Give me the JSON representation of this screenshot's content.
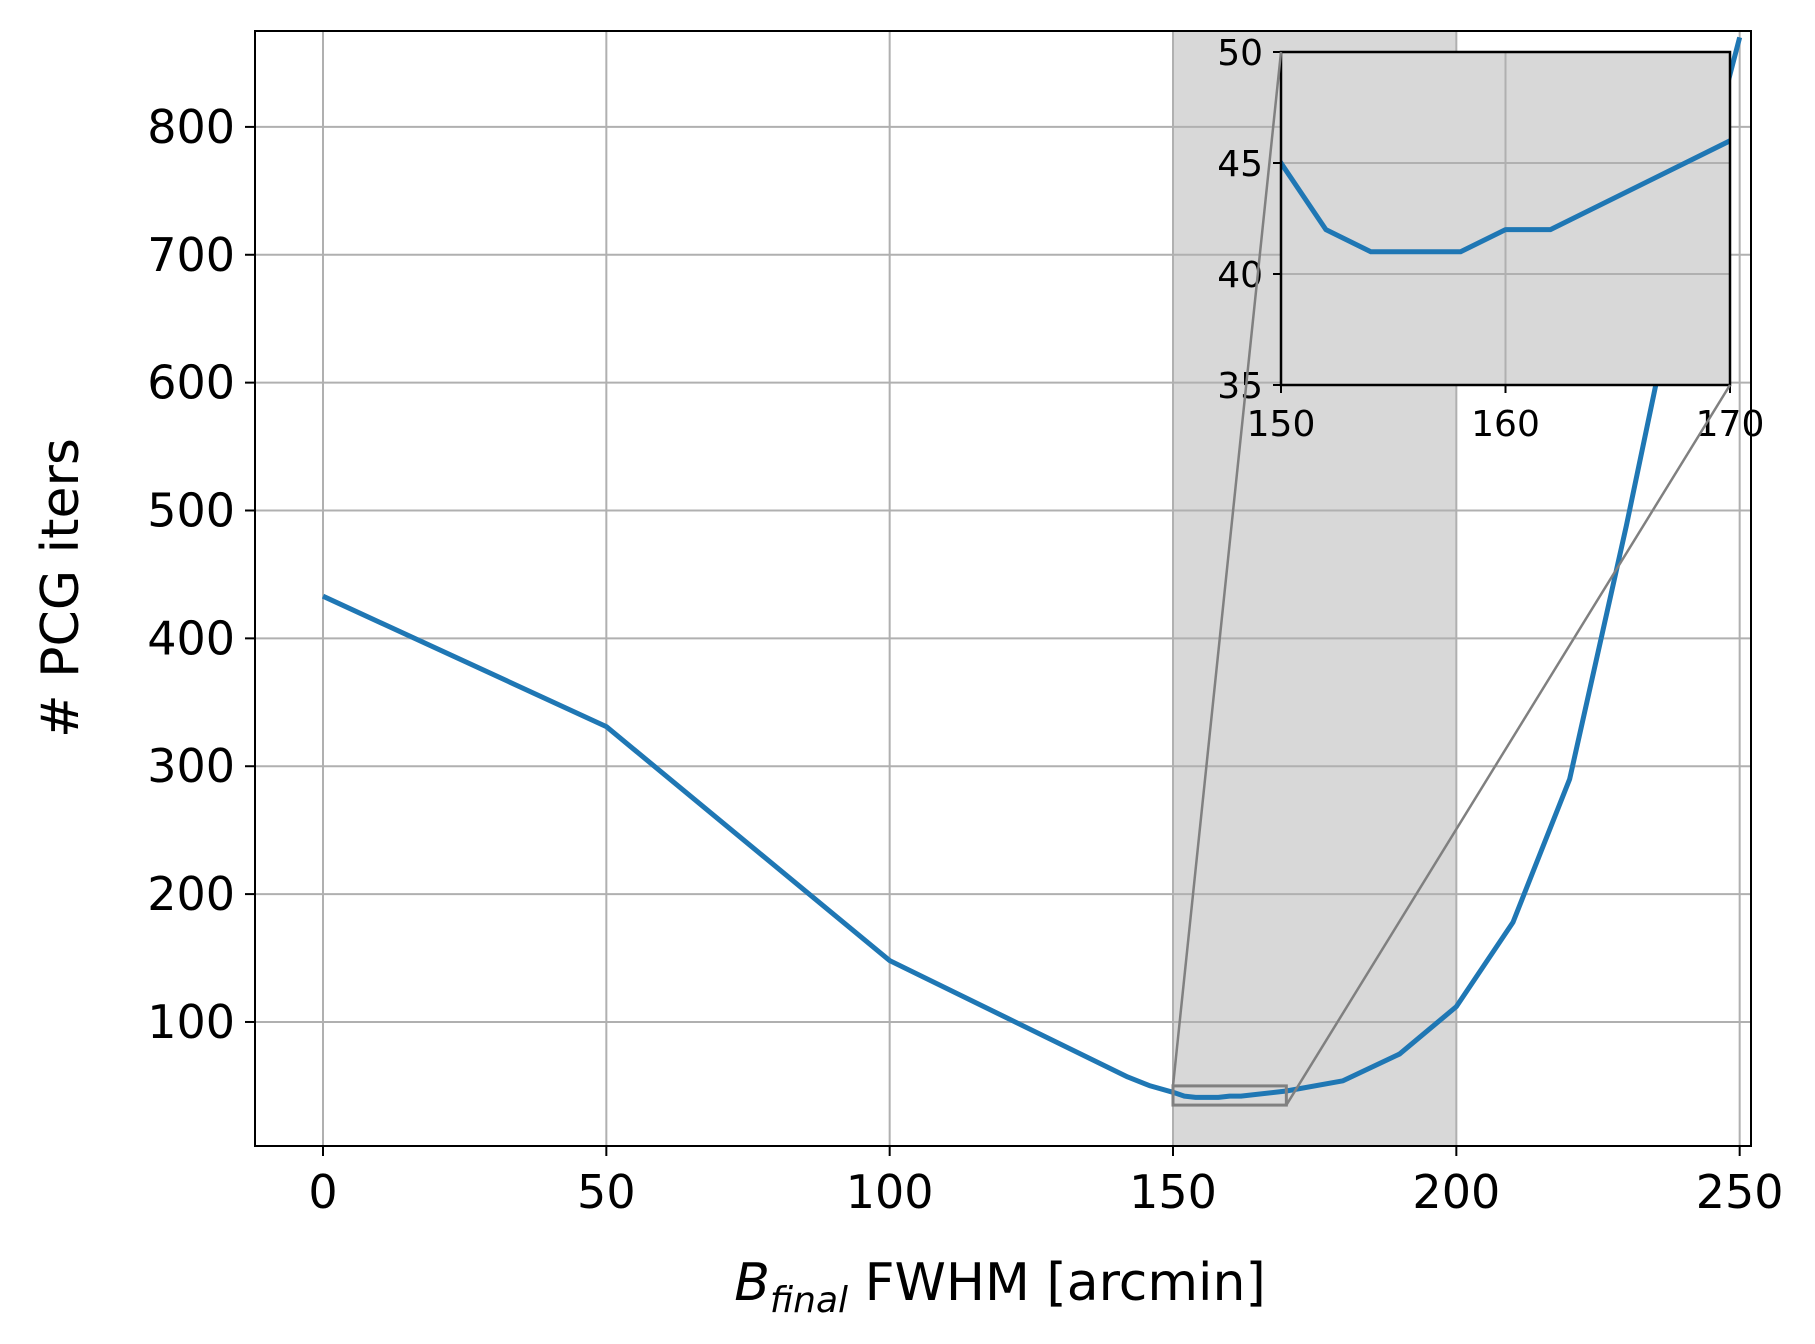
{
  "chart_data": {
    "type": "line",
    "xlabel": {
      "symbol": "B",
      "subscript": "final",
      "text": " FWHM [arcmin]"
    },
    "ylabel": "# PCG iters",
    "xlim": [
      -12,
      252
    ],
    "ylim": [
      3,
      875
    ],
    "xticks": [
      0,
      50,
      100,
      150,
      200,
      250
    ],
    "yticks": [
      100,
      200,
      300,
      400,
      500,
      600,
      700,
      800
    ],
    "grid": true,
    "highlight_band": {
      "x_start": 150,
      "x_end": 200,
      "color": "#d8d8d8"
    },
    "series": [
      {
        "color": "#1f77b4",
        "x": [
          0,
          50,
          100,
          142,
          146,
          150,
          152,
          154,
          156,
          158,
          160,
          162,
          170,
          180,
          190,
          200,
          210,
          220,
          230,
          240,
          250
        ],
        "y": [
          433,
          331,
          148,
          57,
          50,
          45,
          42,
          41,
          41,
          41,
          42,
          42,
          46,
          54,
          75,
          112,
          178,
          290,
          488,
          700,
          870
        ]
      }
    ],
    "zoom_rectangle": {
      "x": [
        150,
        170
      ],
      "y": [
        35,
        50
      ]
    },
    "inset": {
      "position": "top-right",
      "xlim": [
        150,
        170
      ],
      "ylim": [
        35,
        50
      ],
      "xticks": [
        150,
        160,
        170
      ],
      "yticks": [
        35,
        40,
        45,
        50
      ],
      "grid": true,
      "background": "#d8d8d8"
    },
    "colors": {
      "line": "#1f77b4",
      "grid": "#b0b0b0",
      "connector": "#808080"
    }
  }
}
